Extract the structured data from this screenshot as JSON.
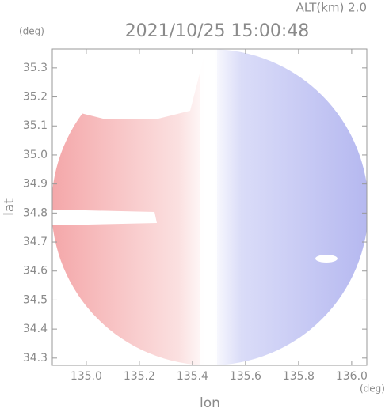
{
  "chart_data": {
    "type": "radar-map",
    "title": "2021/10/25 15:00:48",
    "altitude_label": "ALT(km) 2.0",
    "y_unit": "(deg)",
    "x_unit": "(deg)",
    "xlabel": "lon",
    "ylabel": "lat",
    "xlim": [
      134.872,
      136.057
    ],
    "ylim": [
      34.275,
      35.365
    ],
    "xticks": [
      {
        "value": 135,
        "label": "135.0"
      },
      {
        "value": 135.2,
        "label": "135.2"
      },
      {
        "value": 135.4,
        "label": "135.4"
      },
      {
        "value": 135.6,
        "label": "135.6"
      },
      {
        "value": 135.8,
        "label": "135.8"
      },
      {
        "value": 136,
        "label": "136.0"
      }
    ],
    "yticks": [
      34.3,
      34.4,
      34.5,
      34.6,
      34.7,
      34.8,
      34.9,
      {
        "value": 35,
        "label": "35.0"
      },
      35.1,
      35.2,
      35.3
    ]
  }
}
